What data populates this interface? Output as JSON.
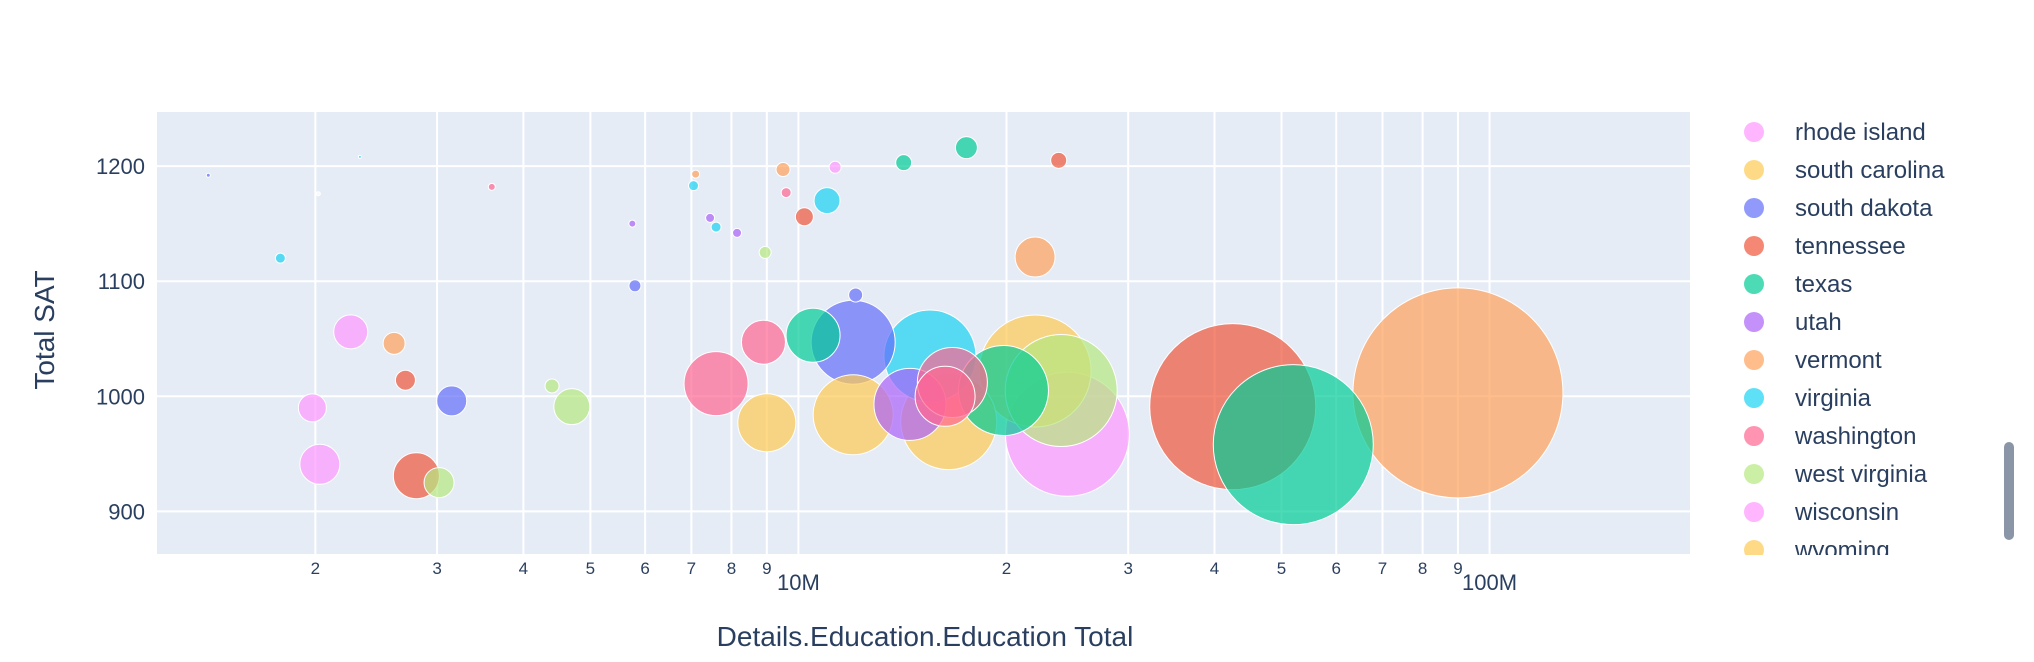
{
  "chart_data": {
    "type": "scatter",
    "subtype": "bubble",
    "xlabel": "Details.Education.Education Total",
    "ylabel": "Total SAT",
    "x_scale": "log",
    "xlim": [
      1180000,
      195000000
    ],
    "ylim": [
      863,
      1247
    ],
    "x_major_tick_labels": [
      {
        "value": 10000000,
        "label": "10M"
      },
      {
        "value": 100000000,
        "label": "100M"
      }
    ],
    "x_minor_tick_values": [
      2000000,
      3000000,
      4000000,
      5000000,
      6000000,
      7000000,
      8000000,
      9000000,
      20000000,
      30000000,
      40000000,
      50000000,
      60000000,
      70000000,
      80000000,
      90000000
    ],
    "x_minor_tick_labels": [
      "2",
      "3",
      "4",
      "5",
      "6",
      "7",
      "8",
      "9",
      "2",
      "3",
      "4",
      "5",
      "6",
      "7",
      "8",
      "9"
    ],
    "y_ticks": [
      900,
      1000,
      1100,
      1200
    ],
    "y_tick_labels": [
      "900",
      "1000",
      "1100",
      "1200"
    ],
    "grid": true,
    "legend_position": "right",
    "background_color": "#E5ECF6",
    "legend": [
      {
        "name": "rhode island",
        "color": "#FF97FF"
      },
      {
        "name": "south carolina",
        "color": "#FECB52"
      },
      {
        "name": "south dakota",
        "color": "#636EFA"
      },
      {
        "name": "tennessee",
        "color": "#EF553B"
      },
      {
        "name": "texas",
        "color": "#00CC96"
      },
      {
        "name": "utah",
        "color": "#AB63FA"
      },
      {
        "name": "vermont",
        "color": "#FFA15A"
      },
      {
        "name": "virginia",
        "color": "#19D3F3"
      },
      {
        "name": "washington",
        "color": "#FF6692"
      },
      {
        "name": "west virginia",
        "color": "#B6E880"
      },
      {
        "name": "wisconsin",
        "color": "#FF97FF"
      },
      {
        "name": "wyoming",
        "color": "#FECB52"
      }
    ],
    "points": [
      {
        "x": 90000000,
        "y": 1003,
        "size": 105,
        "color": "#FFA15A"
      },
      {
        "x": 42500000,
        "y": 991,
        "size": 83,
        "color": "#EF553B"
      },
      {
        "x": 52000000,
        "y": 958,
        "size": 80,
        "color": "#00CC96"
      },
      {
        "x": 24500000,
        "y": 967,
        "size": 62,
        "color": "#FF97FF"
      },
      {
        "x": 22000000,
        "y": 1022,
        "size": 56,
        "color": "#FECB52"
      },
      {
        "x": 24000000,
        "y": 1005,
        "size": 56,
        "color": "#B6E880"
      },
      {
        "x": 16500000,
        "y": 978,
        "size": 48,
        "color": "#FECB52"
      },
      {
        "x": 15500000,
        "y": 1035,
        "size": 46,
        "color": "#19D3F3"
      },
      {
        "x": 19800000,
        "y": 1005,
        "size": 45,
        "color": "#00CC96"
      },
      {
        "x": 14500000,
        "y": 993,
        "size": 36,
        "color": "#AB63FA"
      },
      {
        "x": 16300000,
        "y": 1000,
        "size": 30,
        "color": "#FF6692"
      },
      {
        "x": 16700000,
        "y": 1012,
        "size": 35,
        "color": "#FF6692"
      },
      {
        "x": 12000000,
        "y": 984,
        "size": 40,
        "color": "#FECB52"
      },
      {
        "x": 12000000,
        "y": 1047,
        "size": 42,
        "color": "#636EFA"
      },
      {
        "x": 10500000,
        "y": 1053,
        "size": 27,
        "color": "#00CC96"
      },
      {
        "x": 9000000,
        "y": 977,
        "size": 29,
        "color": "#FECB52"
      },
      {
        "x": 7600000,
        "y": 1011,
        "size": 32,
        "color": "#FF6692"
      },
      {
        "x": 8900000,
        "y": 1047,
        "size": 22,
        "color": "#FF6692"
      },
      {
        "x": 2600000,
        "y": 1046,
        "size": 11,
        "color": "#FFA15A"
      },
      {
        "x": 2250000,
        "y": 1056,
        "size": 17,
        "color": "#FF97FF"
      },
      {
        "x": 2700000,
        "y": 1014,
        "size": 10,
        "color": "#EF553B"
      },
      {
        "x": 3150000,
        "y": 996,
        "size": 15,
        "color": "#636EFA"
      },
      {
        "x": 1980000,
        "y": 990,
        "size": 14,
        "color": "#FF97FF"
      },
      {
        "x": 2030000,
        "y": 941,
        "size": 20,
        "color": "#FF97FF"
      },
      {
        "x": 2800000,
        "y": 931,
        "size": 23,
        "color": "#EF553B"
      },
      {
        "x": 3020000,
        "y": 925,
        "size": 15,
        "color": "#B6E880"
      },
      {
        "x": 4700000,
        "y": 991,
        "size": 18,
        "color": "#B6E880"
      },
      {
        "x": 4400000,
        "y": 1009,
        "size": 7,
        "color": "#B6E880"
      },
      {
        "x": 5800000,
        "y": 1096,
        "size": 6,
        "color": "#636EFA"
      },
      {
        "x": 12100000,
        "y": 1088,
        "size": 7,
        "color": "#636EFA"
      },
      {
        "x": 22000000,
        "y": 1121,
        "size": 20,
        "color": "#FFA15A"
      },
      {
        "x": 11000000,
        "y": 1170,
        "size": 13,
        "color": "#19D3F3"
      },
      {
        "x": 10200000,
        "y": 1156,
        "size": 9,
        "color": "#EF553B"
      },
      {
        "x": 9600000,
        "y": 1177,
        "size": 5,
        "color": "#FF6692"
      },
      {
        "x": 9500000,
        "y": 1197,
        "size": 7,
        "color": "#FFA15A"
      },
      {
        "x": 8950000,
        "y": 1125,
        "size": 6,
        "color": "#B6E880"
      },
      {
        "x": 7450000,
        "y": 1155,
        "size": 4.5,
        "color": "#AB63FA"
      },
      {
        "x": 8150000,
        "y": 1142,
        "size": 4.5,
        "color": "#AB63FA"
      },
      {
        "x": 7600000,
        "y": 1147,
        "size": 5,
        "color": "#19D3F3"
      },
      {
        "x": 7050000,
        "y": 1183,
        "size": 5,
        "color": "#19D3F3"
      },
      {
        "x": 7100000,
        "y": 1193,
        "size": 4,
        "color": "#FFA15A"
      },
      {
        "x": 11300000,
        "y": 1199,
        "size": 6,
        "color": "#FF97FF"
      },
      {
        "x": 14200000,
        "y": 1203,
        "size": 8,
        "color": "#00CC96"
      },
      {
        "x": 17500000,
        "y": 1216,
        "size": 11,
        "color": "#00CC96"
      },
      {
        "x": 23800000,
        "y": 1205,
        "size": 8,
        "color": "#EF553B"
      },
      {
        "x": 5750000,
        "y": 1150,
        "size": 3.5,
        "color": "#AB63FA"
      },
      {
        "x": 3600000,
        "y": 1182,
        "size": 3.5,
        "color": "#FF6692"
      },
      {
        "x": 1780000,
        "y": 1120,
        "size": 5,
        "color": "#19D3F3"
      },
      {
        "x": 1400000,
        "y": 1192,
        "size": 2,
        "color": "#636EFA"
      },
      {
        "x": 2320000,
        "y": 1208,
        "size": 1.5,
        "color": "#19D3F3"
      },
      {
        "x": 2020000,
        "y": 1176,
        "size": 2,
        "color": "#FFFFFF"
      }
    ]
  }
}
